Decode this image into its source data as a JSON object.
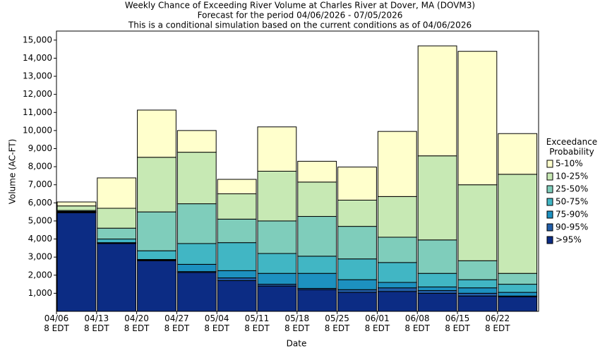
{
  "chart_data": {
    "type": "stacked_bar",
    "title": "Weekly Chance of Exceeding River Volume at Charles River at Dover, MA (DOVM3)",
    "subtitle": [
      "Forecast for the period 04/06/2026 - 07/05/2026",
      "This is a conditional simulation based on the current conditions as of 04/06/2026"
    ],
    "x_label": "Date",
    "y_label": "Volume (AC-FT)",
    "legend_title": "Exceedance\nProbability",
    "legend_position": "right",
    "categories": [
      "04/06\n8 EDT",
      "04/13\n8 EDT",
      "04/20\n8 EDT",
      "04/27\n8 EDT",
      "05/04\n8 EDT",
      "05/11\n8 EDT",
      "05/18\n8 EDT",
      "05/25\n8 EDT",
      "06/01\n8 EDT",
      "06/08\n8 EDT",
      "06/15\n8 EDT",
      "06/22\n8 EDT"
    ],
    "series": [
      {
        "name": ">95%",
        "color": "#0c2c84",
        "values": [
          5450,
          3750,
          2800,
          2150,
          1700,
          1400,
          1200,
          1050,
          1100,
          1000,
          850,
          800
        ]
      },
      {
        "name": "90-95%",
        "color": "#225ea8",
        "values": [
          30,
          30,
          30,
          50,
          150,
          100,
          70,
          150,
          200,
          150,
          150,
          50
        ]
      },
      {
        "name": "75-90%",
        "color": "#1d91c0",
        "values": [
          20,
          20,
          40,
          400,
          400,
          600,
          830,
          550,
          300,
          200,
          300,
          200
        ]
      },
      {
        "name": "50-75%",
        "color": "#41b6c4",
        "values": [
          30,
          200,
          480,
          1150,
          1550,
          1100,
          950,
          1150,
          1100,
          750,
          450,
          450
        ]
      },
      {
        "name": "25-50%",
        "color": "#7fcdbb",
        "values": [
          50,
          600,
          2150,
          2200,
          1300,
          1800,
          2200,
          1800,
          1400,
          1850,
          1050,
          600
        ]
      },
      {
        "name": "10-25%",
        "color": "#c7e9b4",
        "values": [
          250,
          1100,
          3020,
          2850,
          1400,
          2750,
          1900,
          1450,
          2250,
          4650,
          4200,
          5480
        ]
      },
      {
        "name": "5-10%",
        "color": "#ffffcc",
        "values": [
          220,
          1680,
          2610,
          1200,
          800,
          2450,
          1150,
          1830,
          3600,
          6080,
          7380,
          2250
        ]
      }
    ],
    "ylim": [
      0,
      15500
    ],
    "yticks": [
      {
        "value": 1000,
        "label": "1,000"
      },
      {
        "value": 2000,
        "label": "2,000"
      },
      {
        "value": 3000,
        "label": "3,000"
      },
      {
        "value": 4000,
        "label": "4,000"
      },
      {
        "value": 5000,
        "label": "5,000"
      },
      {
        "value": 6000,
        "label": "6,000"
      },
      {
        "value": 7000,
        "label": "7,000"
      },
      {
        "value": 8000,
        "label": "8,000"
      },
      {
        "value": 9000,
        "label": "9,000"
      },
      {
        "value": 10000,
        "label": "10,000"
      },
      {
        "value": 11000,
        "label": "11,000"
      },
      {
        "value": 12000,
        "label": "12,000"
      },
      {
        "value": 13000,
        "label": "13,000"
      },
      {
        "value": 14000,
        "label": "14,000"
      },
      {
        "value": 15000,
        "label": "15,000"
      }
    ],
    "grid": false
  }
}
